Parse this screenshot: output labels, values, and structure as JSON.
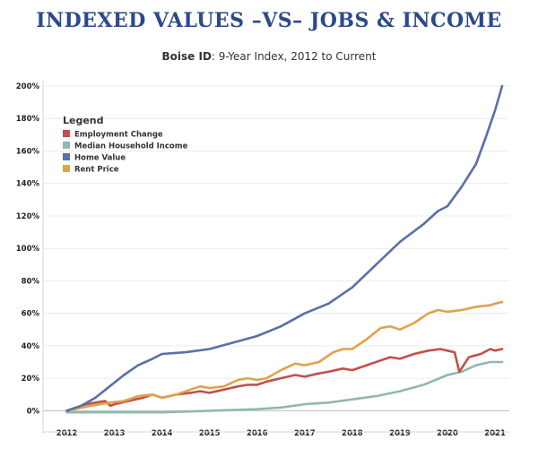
{
  "chart_data": {
    "type": "line",
    "title": "INDEXED VALUES –VS– JOBS & INCOME",
    "subtitle_bold": "Boise ID",
    "subtitle_rest": ": 9-Year Index, 2012 to Current",
    "xlabel": "",
    "ylabel": "",
    "x_ticks": [
      "2012",
      "2013",
      "2014",
      "2015",
      "2016",
      "2017",
      "2018",
      "2019",
      "2020",
      "2021"
    ],
    "xlim": [
      2011.5,
      2021.3
    ],
    "y_ticks": [
      "0%",
      "20%",
      "40%",
      "60%",
      "80%",
      "100%",
      "120%",
      "140%",
      "160%",
      "180%",
      "200%"
    ],
    "ylim": [
      -2,
      200
    ],
    "grid": "horizontal",
    "legend": {
      "title": "Legend",
      "placement": "top-left"
    },
    "series": [
      {
        "name": "Employment Change",
        "color": "#c0504d",
        "points": [
          [
            2012,
            0
          ],
          [
            2012.2,
            2
          ],
          [
            2012.4,
            4
          ],
          [
            2012.6,
            5
          ],
          [
            2012.8,
            6
          ],
          [
            2012.92,
            3
          ],
          [
            2013,
            4
          ],
          [
            2013.3,
            6
          ],
          [
            2013.6,
            8
          ],
          [
            2013.8,
            10
          ],
          [
            2014,
            8
          ],
          [
            2014.3,
            10
          ],
          [
            2014.6,
            11
          ],
          [
            2014.8,
            12
          ],
          [
            2015,
            11
          ],
          [
            2015.3,
            13
          ],
          [
            2015.6,
            15
          ],
          [
            2015.8,
            16
          ],
          [
            2016,
            16
          ],
          [
            2016.2,
            18
          ],
          [
            2016.5,
            20
          ],
          [
            2016.8,
            22
          ],
          [
            2017,
            21
          ],
          [
            2017.3,
            23
          ],
          [
            2017.5,
            24
          ],
          [
            2017.8,
            26
          ],
          [
            2018,
            25
          ],
          [
            2018.3,
            28
          ],
          [
            2018.6,
            31
          ],
          [
            2018.8,
            33
          ],
          [
            2019,
            32
          ],
          [
            2019.3,
            35
          ],
          [
            2019.6,
            37
          ],
          [
            2019.85,
            38
          ],
          [
            2020,
            37
          ],
          [
            2020.15,
            36
          ],
          [
            2020.25,
            24
          ],
          [
            2020.45,
            33
          ],
          [
            2020.7,
            35
          ],
          [
            2020.9,
            38
          ],
          [
            2021,
            37
          ],
          [
            2021.15,
            38
          ]
        ]
      },
      {
        "name": "Median Household Income",
        "color": "#8fb8b1",
        "points": [
          [
            2012,
            -1
          ],
          [
            2012.5,
            -1
          ],
          [
            2013,
            -1
          ],
          [
            2013.5,
            -1
          ],
          [
            2014,
            -1
          ],
          [
            2014.5,
            -0.5
          ],
          [
            2015,
            0
          ],
          [
            2015.5,
            0.5
          ],
          [
            2016,
            1
          ],
          [
            2016.5,
            2
          ],
          [
            2017,
            4
          ],
          [
            2017.5,
            5
          ],
          [
            2018,
            7
          ],
          [
            2018.5,
            9
          ],
          [
            2019,
            12
          ],
          [
            2019.5,
            16
          ],
          [
            2020,
            22
          ],
          [
            2020.3,
            24
          ],
          [
            2020.6,
            28
          ],
          [
            2020.9,
            30
          ],
          [
            2021.15,
            30
          ]
        ]
      },
      {
        "name": "Home Value",
        "color": "#5b6fa8",
        "points": [
          [
            2012,
            0
          ],
          [
            2012.3,
            3
          ],
          [
            2012.6,
            8
          ],
          [
            2012.9,
            15
          ],
          [
            2013.2,
            22
          ],
          [
            2013.5,
            28
          ],
          [
            2013.8,
            32
          ],
          [
            2014,
            35
          ],
          [
            2014.5,
            36
          ],
          [
            2015,
            38
          ],
          [
            2015.5,
            42
          ],
          [
            2016,
            46
          ],
          [
            2016.5,
            52
          ],
          [
            2017,
            60
          ],
          [
            2017.5,
            66
          ],
          [
            2018,
            76
          ],
          [
            2018.5,
            90
          ],
          [
            2019,
            104
          ],
          [
            2019.5,
            115
          ],
          [
            2019.8,
            123
          ],
          [
            2020,
            126
          ],
          [
            2020.3,
            138
          ],
          [
            2020.6,
            152
          ],
          [
            2020.8,
            168
          ],
          [
            2021,
            185
          ],
          [
            2021.15,
            200
          ]
        ]
      },
      {
        "name": "Rent Price",
        "color": "#e0a24a",
        "points": [
          [
            2012,
            0
          ],
          [
            2012.5,
            3
          ],
          [
            2012.9,
            5
          ],
          [
            2013.2,
            6
          ],
          [
            2013.5,
            9
          ],
          [
            2013.8,
            10
          ],
          [
            2014,
            8
          ],
          [
            2014.3,
            10
          ],
          [
            2014.6,
            13
          ],
          [
            2014.8,
            15
          ],
          [
            2015,
            14
          ],
          [
            2015.3,
            15
          ],
          [
            2015.6,
            19
          ],
          [
            2015.8,
            20
          ],
          [
            2016,
            19
          ],
          [
            2016.2,
            20
          ],
          [
            2016.5,
            25
          ],
          [
            2016.8,
            29
          ],
          [
            2017,
            28
          ],
          [
            2017.3,
            30
          ],
          [
            2017.6,
            36
          ],
          [
            2017.8,
            38
          ],
          [
            2018,
            38
          ],
          [
            2018.3,
            44
          ],
          [
            2018.6,
            51
          ],
          [
            2018.8,
            52
          ],
          [
            2019,
            50
          ],
          [
            2019.3,
            54
          ],
          [
            2019.6,
            60
          ],
          [
            2019.8,
            62
          ],
          [
            2020,
            61
          ],
          [
            2020.3,
            62
          ],
          [
            2020.6,
            64
          ],
          [
            2020.9,
            65
          ],
          [
            2021,
            66
          ],
          [
            2021.15,
            67
          ]
        ]
      }
    ]
  }
}
